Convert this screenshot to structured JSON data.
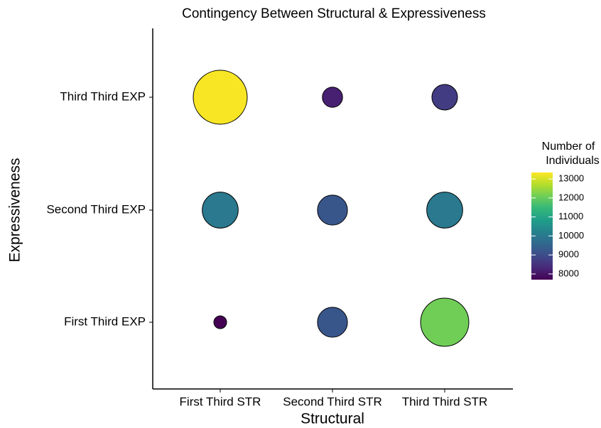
{
  "chart_data": {
    "type": "bubble",
    "title": "Contingency Between Structural & Expressiveness",
    "x_label": "Structural",
    "y_label": "Expressiveness",
    "x_categories": [
      "First Third STR",
      "Second Third STR",
      "Third Third STR"
    ],
    "y_categories": [
      "First Third EXP",
      "Second Third EXP",
      "Third Third EXP"
    ],
    "values": [
      [
        7700,
        9200,
        12100
      ],
      [
        10000,
        9200,
        10000
      ],
      [
        13300,
        8200,
        8700
      ]
    ],
    "legend_title": [
      "Number of",
      "Individuals"
    ],
    "color_lim": [
      7700,
      13340
    ],
    "color_ticks": [
      8000,
      9000,
      10000,
      11000,
      12000,
      13000
    ],
    "colorscale": [
      "#440154",
      "#482878",
      "#3e4a89",
      "#31688e",
      "#26828e",
      "#1f9e89",
      "#35b779",
      "#6ece58",
      "#b5de2b",
      "#fde725"
    ]
  }
}
